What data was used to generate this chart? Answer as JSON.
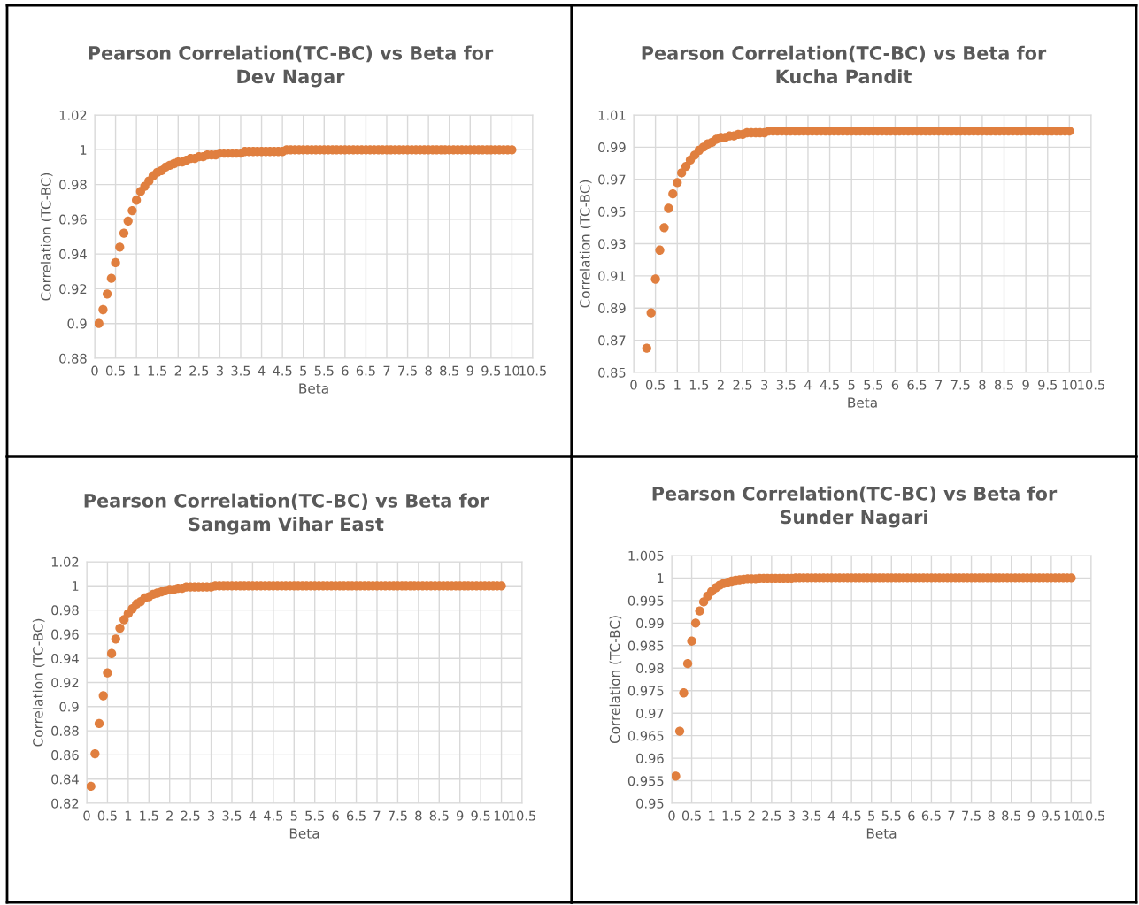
{
  "chart_data": [
    {
      "type": "scatter",
      "title": "Pearson Correlation(TC-BC) vs Beta for Dev Nagar",
      "xlabel": "Beta",
      "ylabel": "Correlation (TC-BC)",
      "marker": "circle",
      "grid": true,
      "xlim": [
        0,
        10.5
      ],
      "xticks": [
        0,
        0.5,
        1,
        1.5,
        2,
        2.5,
        3,
        3.5,
        4,
        4.5,
        5,
        5.5,
        6,
        6.5,
        7,
        7.5,
        8,
        8.5,
        9,
        9.5,
        10,
        10.5
      ],
      "ylim": [
        0.88,
        1.02
      ],
      "yticks": [
        0.88,
        0.9,
        0.92,
        0.94,
        0.96,
        0.98,
        1,
        1.02
      ],
      "series": [
        {
          "color": "#e07f3f",
          "x": [
            0.1,
            0.2,
            0.3,
            0.4,
            0.5,
            0.6,
            0.7,
            0.8,
            0.9,
            1.0,
            1.1,
            1.2,
            1.3,
            1.4,
            1.5,
            1.6,
            1.7,
            1.8,
            1.9,
            2.0,
            2.1,
            2.2,
            2.3,
            2.4,
            2.5,
            2.6,
            2.7,
            2.8,
            2.9,
            3.0,
            3.1,
            3.2,
            3.3,
            3.4,
            3.5,
            3.6,
            3.7,
            3.8,
            3.9,
            4.0,
            4.1,
            4.2,
            4.3,
            4.4,
            4.5,
            4.6,
            4.7,
            4.8,
            4.9,
            5.0,
            5.1,
            5.2,
            5.3,
            5.4,
            5.5,
            5.6,
            5.7,
            5.8,
            5.9,
            6.0,
            6.1,
            6.2,
            6.3,
            6.4,
            6.5,
            6.6,
            6.7,
            6.8,
            6.9,
            7.0,
            7.1,
            7.2,
            7.3,
            7.4,
            7.5,
            7.6,
            7.7,
            7.8,
            7.9,
            8.0,
            8.1,
            8.2,
            8.3,
            8.4,
            8.5,
            8.6,
            8.7,
            8.8,
            8.9,
            9.0,
            9.1,
            9.2,
            9.3,
            9.4,
            9.5,
            9.6,
            9.7,
            9.8,
            9.9,
            10.0
          ],
          "values": [
            0.9,
            0.908,
            0.917,
            0.926,
            0.935,
            0.944,
            0.952,
            0.959,
            0.965,
            0.971,
            0.976,
            0.979,
            0.982,
            0.985,
            0.987,
            0.988,
            0.99,
            0.991,
            0.992,
            0.993,
            0.993,
            0.994,
            0.995,
            0.995,
            0.996,
            0.996,
            0.997,
            0.997,
            0.997,
            0.998,
            0.998,
            0.998,
            0.998,
            0.998,
            0.998,
            0.999,
            0.999,
            0.999,
            0.999,
            0.999,
            0.999,
            0.999,
            0.999,
            0.999,
            0.999,
            1,
            1,
            1,
            1,
            1,
            1,
            1,
            1,
            1,
            1,
            1,
            1,
            1,
            1,
            1,
            1,
            1,
            1,
            1,
            1,
            1,
            1,
            1,
            1,
            1,
            1,
            1,
            1,
            1,
            1,
            1,
            1,
            1,
            1,
            1,
            1,
            1,
            1,
            1,
            1,
            1,
            1,
            1,
            1,
            1,
            1,
            1,
            1,
            1,
            1,
            1,
            1,
            1,
            1,
            1
          ]
        }
      ]
    },
    {
      "type": "scatter",
      "title": "Pearson Correlation(TC-BC) vs Beta for Kucha Pandit",
      "xlabel": "Beta",
      "ylabel": "Correlation (TC-BC)",
      "marker": "circle",
      "grid": true,
      "xlim": [
        0,
        10.5
      ],
      "xticks": [
        0,
        0.5,
        1,
        1.5,
        2,
        2.5,
        3,
        3.5,
        4,
        4.5,
        5,
        5.5,
        6,
        6.5,
        7,
        7.5,
        8,
        8.5,
        9,
        9.5,
        10,
        10.5
      ],
      "ylim": [
        0.85,
        1.01
      ],
      "yticks": [
        0.85,
        0.87,
        0.89,
        0.91,
        0.93,
        0.95,
        0.97,
        0.99,
        1.01
      ],
      "series": [
        {
          "color": "#e07f3f",
          "x": [
            0.3,
            0.4,
            0.5,
            0.6,
            0.7,
            0.8,
            0.9,
            1.0,
            1.1,
            1.2,
            1.3,
            1.4,
            1.5,
            1.6,
            1.7,
            1.8,
            1.9,
            2.0,
            2.1,
            2.2,
            2.3,
            2.4,
            2.5,
            2.6,
            2.7,
            2.8,
            2.9,
            3.0,
            3.1,
            3.2,
            3.3,
            3.4,
            3.5,
            3.6,
            3.7,
            3.8,
            3.9,
            4.0,
            4.1,
            4.2,
            4.3,
            4.4,
            4.5,
            4.6,
            4.7,
            4.8,
            4.9,
            5.0,
            5.1,
            5.2,
            5.3,
            5.4,
            5.5,
            5.6,
            5.7,
            5.8,
            5.9,
            6.0,
            6.1,
            6.2,
            6.3,
            6.4,
            6.5,
            6.6,
            6.7,
            6.8,
            6.9,
            7.0,
            7.1,
            7.2,
            7.3,
            7.4,
            7.5,
            7.6,
            7.7,
            7.8,
            7.9,
            8.0,
            8.1,
            8.2,
            8.3,
            8.4,
            8.5,
            8.6,
            8.7,
            8.8,
            8.9,
            9.0,
            9.1,
            9.2,
            9.3,
            9.4,
            9.5,
            9.6,
            9.7,
            9.8,
            9.9,
            10.0
          ],
          "values": [
            0.865,
            0.887,
            0.908,
            0.926,
            0.94,
            0.952,
            0.961,
            0.968,
            0.974,
            0.978,
            0.982,
            0.985,
            0.988,
            0.99,
            0.992,
            0.993,
            0.995,
            0.996,
            0.996,
            0.997,
            0.997,
            0.998,
            0.998,
            0.999,
            0.999,
            0.999,
            0.999,
            0.999,
            1,
            1,
            1,
            1,
            1,
            1,
            1,
            1,
            1,
            1,
            1,
            1,
            1,
            1,
            1,
            1,
            1,
            1,
            1,
            1,
            1,
            1,
            1,
            1,
            1,
            1,
            1,
            1,
            1,
            1,
            1,
            1,
            1,
            1,
            1,
            1,
            1,
            1,
            1,
            1,
            1,
            1,
            1,
            1,
            1,
            1,
            1,
            1,
            1,
            1,
            1,
            1,
            1,
            1,
            1,
            1,
            1,
            1,
            1,
            1,
            1,
            1,
            1,
            1,
            1,
            1,
            1,
            1,
            1,
            1
          ]
        }
      ]
    },
    {
      "type": "scatter",
      "title": "Pearson Correlation(TC-BC) vs Beta for Sangam Vihar East",
      "xlabel": "Beta",
      "ylabel": "Correlation (TC-BC)",
      "marker": "circle",
      "grid": true,
      "xlim": [
        0,
        10.5
      ],
      "xticks": [
        0,
        0.5,
        1,
        1.5,
        2,
        2.5,
        3,
        3.5,
        4,
        4.5,
        5,
        5.5,
        6,
        6.5,
        7,
        7.5,
        8,
        8.5,
        9,
        9.5,
        10,
        10.5
      ],
      "ylim": [
        0.82,
        1.02
      ],
      "yticks": [
        0.82,
        0.84,
        0.86,
        0.88,
        0.9,
        0.92,
        0.94,
        0.96,
        0.98,
        1,
        1.02
      ],
      "series": [
        {
          "color": "#e07f3f",
          "x": [
            0.1,
            0.2,
            0.3,
            0.4,
            0.5,
            0.6,
            0.7,
            0.8,
            0.9,
            1.0,
            1.1,
            1.2,
            1.3,
            1.4,
            1.5,
            1.6,
            1.7,
            1.8,
            1.9,
            2.0,
            2.1,
            2.2,
            2.3,
            2.4,
            2.5,
            2.6,
            2.7,
            2.8,
            2.9,
            3.0,
            3.1,
            3.2,
            3.3,
            3.4,
            3.5,
            3.6,
            3.7,
            3.8,
            3.9,
            4.0,
            4.1,
            4.2,
            4.3,
            4.4,
            4.5,
            4.6,
            4.7,
            4.8,
            4.9,
            5.0,
            5.1,
            5.2,
            5.3,
            5.4,
            5.5,
            5.6,
            5.7,
            5.8,
            5.9,
            6.0,
            6.1,
            6.2,
            6.3,
            6.4,
            6.5,
            6.6,
            6.7,
            6.8,
            6.9,
            7.0,
            7.1,
            7.2,
            7.3,
            7.4,
            7.5,
            7.6,
            7.7,
            7.8,
            7.9,
            8.0,
            8.1,
            8.2,
            8.3,
            8.4,
            8.5,
            8.6,
            8.7,
            8.8,
            8.9,
            9.0,
            9.1,
            9.2,
            9.3,
            9.4,
            9.5,
            9.6,
            9.7,
            9.8,
            9.9,
            10.0
          ],
          "values": [
            0.834,
            0.861,
            0.886,
            0.909,
            0.928,
            0.944,
            0.956,
            0.965,
            0.972,
            0.977,
            0.981,
            0.985,
            0.987,
            0.99,
            0.991,
            0.993,
            0.994,
            0.995,
            0.996,
            0.997,
            0.997,
            0.998,
            0.998,
            0.999,
            0.999,
            0.999,
            0.999,
            0.999,
            0.999,
            0.999,
            1,
            1,
            1,
            1,
            1,
            1,
            1,
            1,
            1,
            1,
            1,
            1,
            1,
            1,
            1,
            1,
            1,
            1,
            1,
            1,
            1,
            1,
            1,
            1,
            1,
            1,
            1,
            1,
            1,
            1,
            1,
            1,
            1,
            1,
            1,
            1,
            1,
            1,
            1,
            1,
            1,
            1,
            1,
            1,
            1,
            1,
            1,
            1,
            1,
            1,
            1,
            1,
            1,
            1,
            1,
            1,
            1,
            1,
            1,
            1,
            1,
            1,
            1,
            1,
            1,
            1,
            1,
            1,
            1,
            1
          ]
        }
      ]
    },
    {
      "type": "scatter",
      "title": "Pearson Correlation(TC-BC) vs Beta for Sunder Nagari",
      "xlabel": "Beta",
      "ylabel": "Correlation (TC-BC)",
      "marker": "circle",
      "grid": true,
      "xlim": [
        0,
        10.5
      ],
      "xticks": [
        0,
        0.5,
        1,
        1.5,
        2,
        2.5,
        3,
        3.5,
        4,
        4.5,
        5,
        5.5,
        6,
        6.5,
        7,
        7.5,
        8,
        8.5,
        9,
        9.5,
        10,
        10.5
      ],
      "ylim": [
        0.95,
        1.005
      ],
      "yticks": [
        0.95,
        0.955,
        0.96,
        0.965,
        0.97,
        0.975,
        0.98,
        0.985,
        0.99,
        0.995,
        1,
        1.005
      ],
      "series": [
        {
          "color": "#e07f3f",
          "x": [
            0.1,
            0.2,
            0.3,
            0.4,
            0.5,
            0.6,
            0.7,
            0.8,
            0.9,
            1.0,
            1.1,
            1.2,
            1.3,
            1.4,
            1.5,
            1.6,
            1.7,
            1.8,
            1.9,
            2.0,
            2.1,
            2.2,
            2.3,
            2.4,
            2.5,
            2.6,
            2.7,
            2.8,
            2.9,
            3.0,
            3.1,
            3.2,
            3.3,
            3.4,
            3.5,
            3.6,
            3.7,
            3.8,
            3.9,
            4.0,
            4.1,
            4.2,
            4.3,
            4.4,
            4.5,
            4.6,
            4.7,
            4.8,
            4.9,
            5.0,
            5.1,
            5.2,
            5.3,
            5.4,
            5.5,
            5.6,
            5.7,
            5.8,
            5.9,
            6.0,
            6.1,
            6.2,
            6.3,
            6.4,
            6.5,
            6.6,
            6.7,
            6.8,
            6.9,
            7.0,
            7.1,
            7.2,
            7.3,
            7.4,
            7.5,
            7.6,
            7.7,
            7.8,
            7.9,
            8.0,
            8.1,
            8.2,
            8.3,
            8.4,
            8.5,
            8.6,
            8.7,
            8.8,
            8.9,
            9.0,
            9.1,
            9.2,
            9.3,
            9.4,
            9.5,
            9.6,
            9.7,
            9.8,
            9.9,
            10.0
          ],
          "values": [
            0.956,
            0.966,
            0.9745,
            0.981,
            0.986,
            0.99,
            0.9927,
            0.9947,
            0.996,
            0.997,
            0.9978,
            0.9984,
            0.9988,
            0.9991,
            0.9993,
            0.9995,
            0.9996,
            0.9997,
            0.9998,
            0.9998,
            0.9998,
            0.9999,
            0.9999,
            0.9999,
            0.9999,
            0.9999,
            0.9999,
            0.9999,
            0.9999,
            0.9999,
            1,
            1,
            1,
            1,
            1,
            1,
            1,
            1,
            1,
            1,
            1,
            1,
            1,
            1,
            1,
            1,
            1,
            1,
            1,
            1,
            1,
            1,
            1,
            1,
            1,
            1,
            1,
            1,
            1,
            1,
            1,
            1,
            1,
            1,
            1,
            1,
            1,
            1,
            1,
            1,
            1,
            1,
            1,
            1,
            1,
            1,
            1,
            1,
            1,
            1,
            1,
            1,
            1,
            1,
            1,
            1,
            1,
            1,
            1,
            1,
            1,
            1,
            1,
            1,
            1,
            1,
            1,
            1,
            1,
            1
          ]
        }
      ]
    }
  ]
}
